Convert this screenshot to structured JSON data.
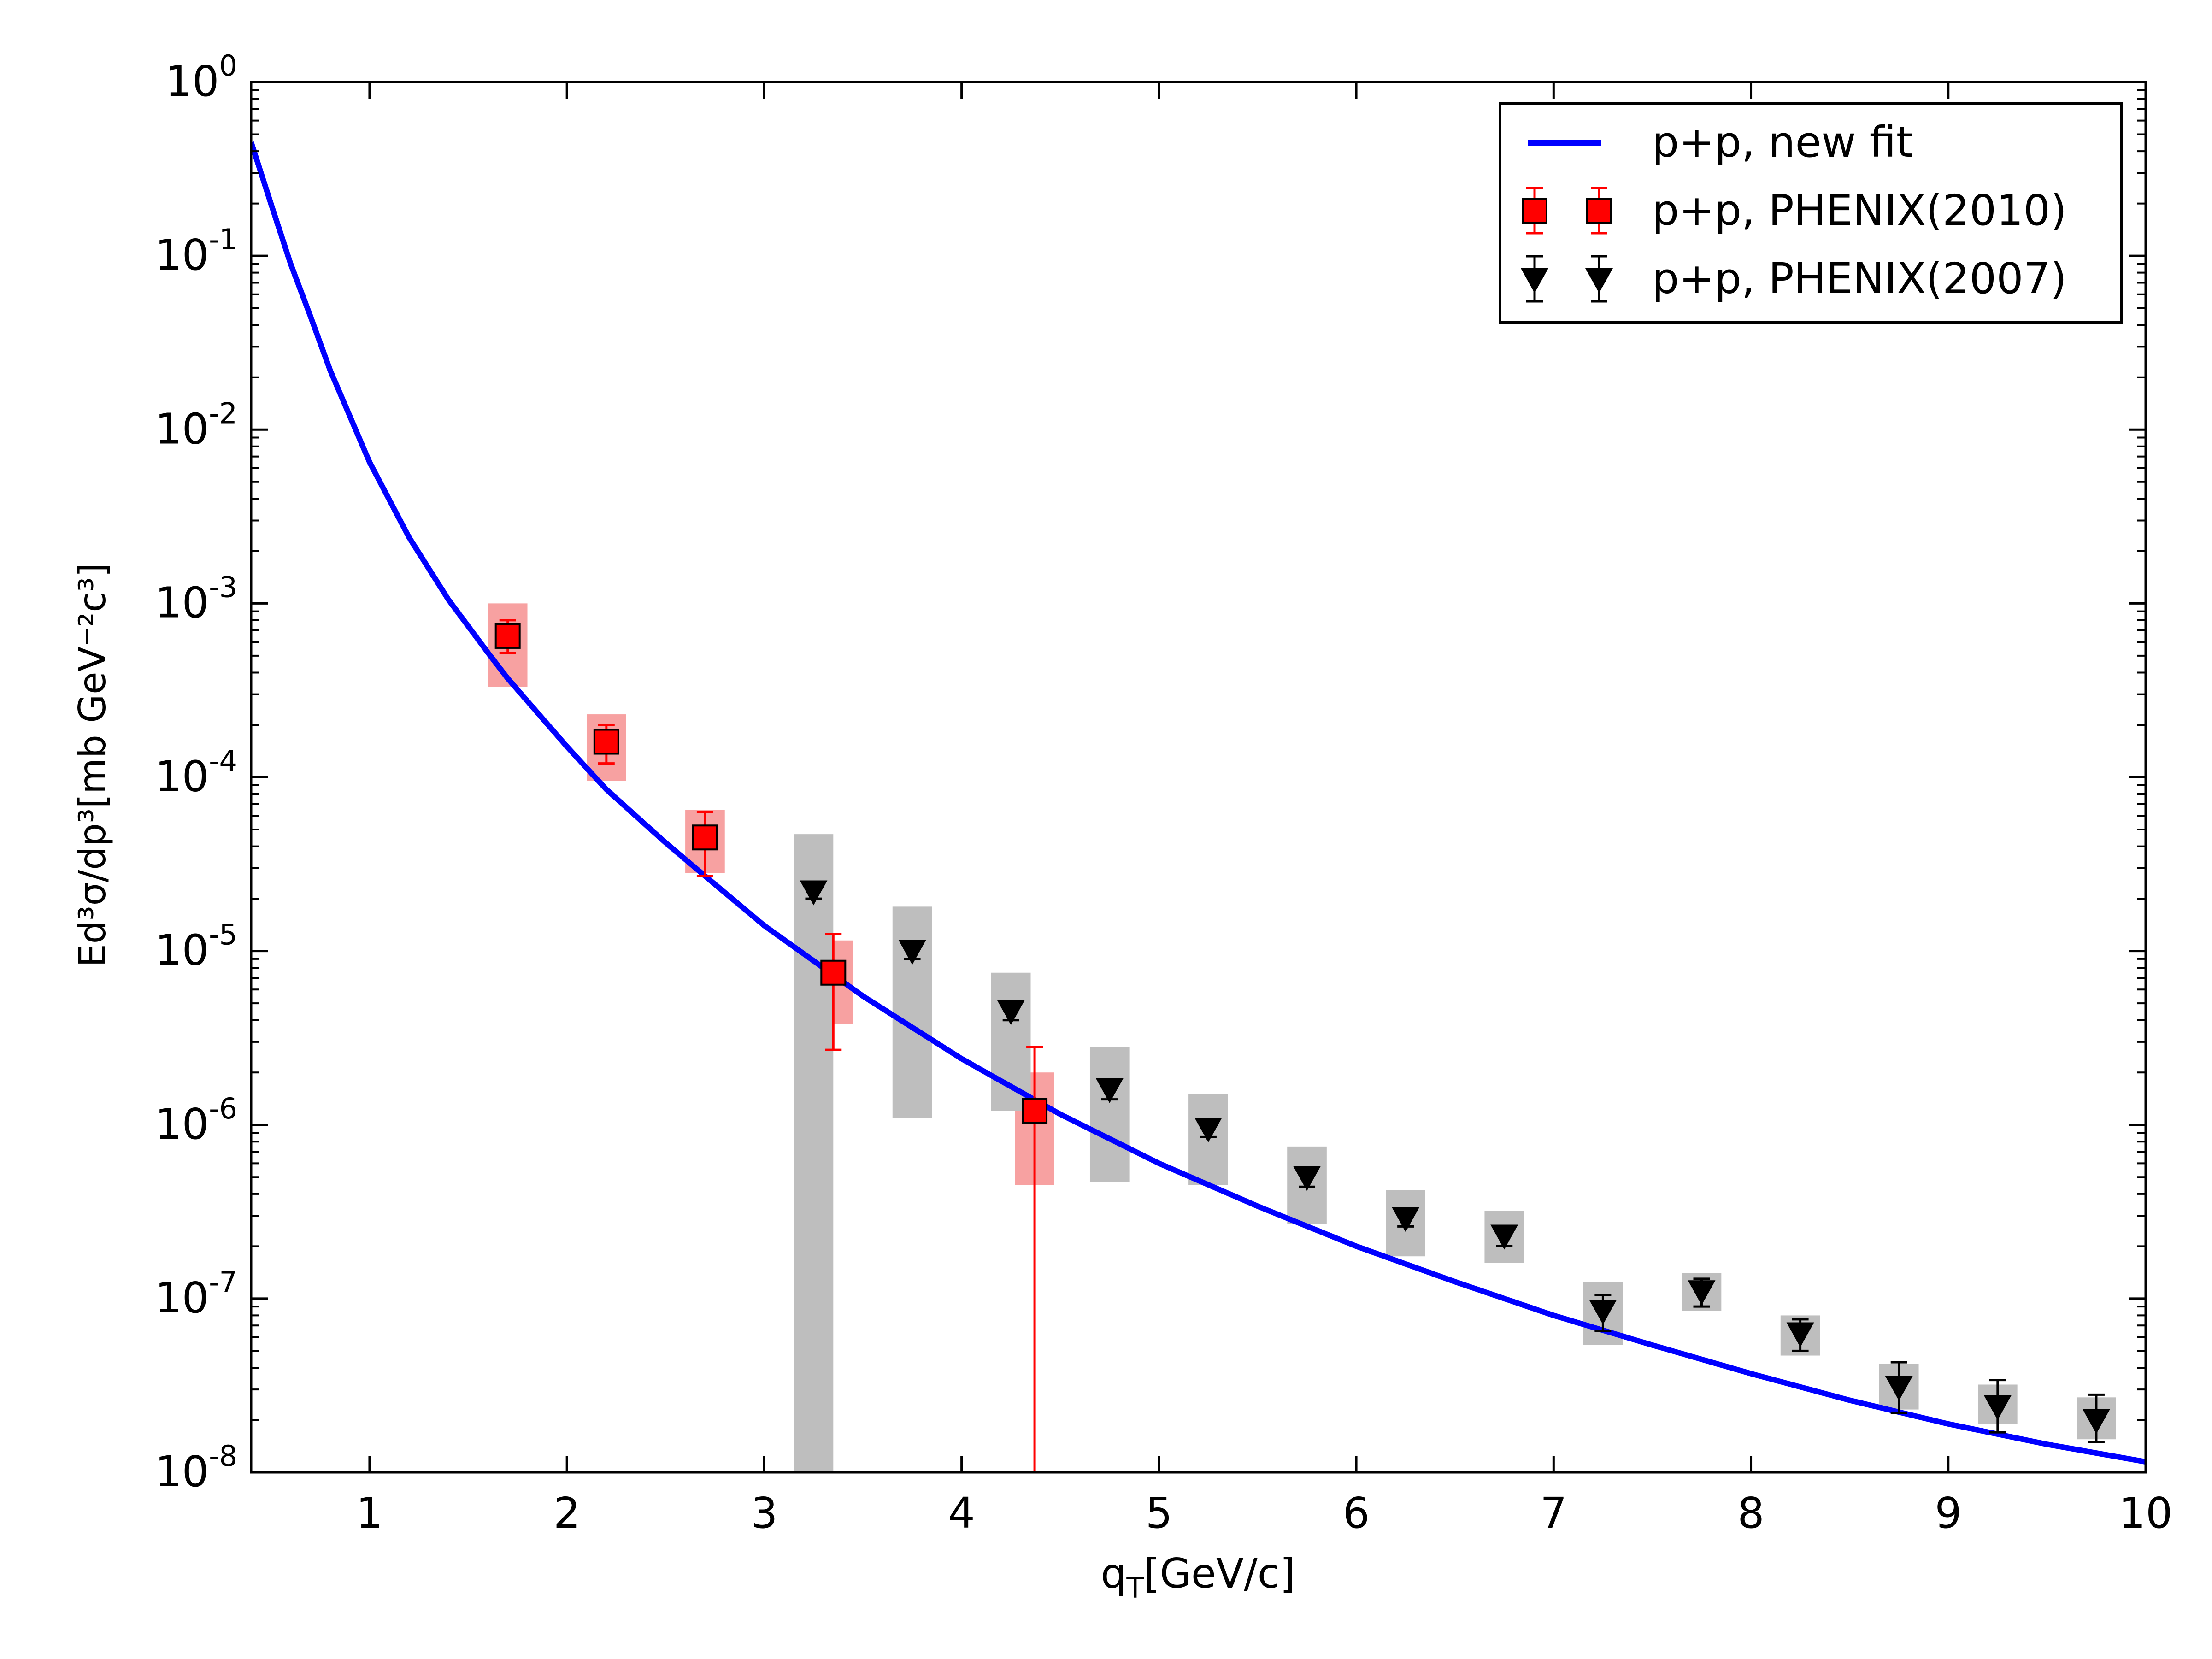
{
  "chart_data": {
    "type": "scatter",
    "title": "",
    "xlabel": "q",
    "xlabel_sub": "T",
    "xlabel_rest": "[GeV/c]",
    "ylabel": "Ed³σ/dp³[mb GeV⁻²c³]",
    "xlim": [
      0.4,
      10
    ],
    "ylim_log10": [
      -8,
      0
    ],
    "x_ticks": [
      1,
      2,
      3,
      4,
      5,
      6,
      7,
      8,
      9,
      10
    ],
    "x_tick_labels": [
      "1",
      "2",
      "3",
      "4",
      "5",
      "6",
      "7",
      "8",
      "9",
      "10"
    ],
    "y_ticks": [
      {
        "base": "10",
        "exp": "0",
        "log": 0
      },
      {
        "base": "10",
        "exp": "-1",
        "log": -1
      },
      {
        "base": "10",
        "exp": "-2",
        "log": -2
      },
      {
        "base": "10",
        "exp": "-3",
        "log": -3
      },
      {
        "base": "10",
        "exp": "-4",
        "log": -4
      },
      {
        "base": "10",
        "exp": "-5",
        "log": -5
      },
      {
        "base": "10",
        "exp": "-6",
        "log": -6
      },
      {
        "base": "10",
        "exp": "-7",
        "log": -7
      },
      {
        "base": "10",
        "exp": "-8",
        "log": -8
      }
    ],
    "legend": {
      "position": "top-right",
      "entries": [
        "p+p, new fit",
        "p+p, PHENIX(2010)",
        "p+p, PHENIX(2007)"
      ]
    },
    "series": [
      {
        "name": "p+p, new fit",
        "kind": "line",
        "color": "#0000ff",
        "x": [
          0.4,
          0.5,
          0.6,
          0.7,
          0.8,
          1.0,
          1.2,
          1.4,
          1.6,
          1.7,
          2.0,
          2.2,
          2.5,
          2.7,
          3.0,
          3.5,
          4.0,
          4.5,
          5.0,
          5.5,
          6.0,
          6.5,
          7.0,
          7.5,
          8.0,
          8.5,
          9.0,
          9.5,
          10.0
        ],
        "y": [
          0.45,
          0.2,
          0.09,
          0.045,
          0.022,
          0.0065,
          0.0024,
          0.00105,
          0.00052,
          0.00037,
          0.00015,
          8.5e-05,
          4.2e-05,
          2.7e-05,
          1.4e-05,
          5.5e-06,
          2.4e-06,
          1.15e-06,
          6e-07,
          3.4e-07,
          2e-07,
          1.25e-07,
          8e-08,
          5.4e-08,
          3.7e-08,
          2.6e-08,
          1.9e-08,
          1.45e-08,
          1.15e-08
        ]
      },
      {
        "name": "p+p, PHENIX(2010)",
        "kind": "points",
        "marker": "square",
        "color": "#ff0000",
        "sys_color": "#f7a1a1",
        "x": [
          1.7,
          2.2,
          2.7,
          3.35,
          4.37
        ],
        "y": [
          0.00065,
          0.00016,
          4.5e-05,
          7.5e-06,
          1.2e-06
        ],
        "err_low": [
          0.00052,
          0.00012,
          2.7e-05,
          2.7e-06,
          1e-08
        ],
        "err_high": [
          0.0008,
          0.0002,
          6.3e-05,
          1.25e-05,
          2.8e-06
        ],
        "sys_low": [
          0.00033,
          9.5e-05,
          2.8e-05,
          3.8e-06,
          4.5e-07
        ],
        "sys_high": [
          0.001,
          0.00023,
          6.5e-05,
          1.15e-05,
          2e-06
        ],
        "sys_halfwidth": 0.1
      },
      {
        "name": "p+p, PHENIX(2007)",
        "kind": "points",
        "marker": "triangle-down",
        "color": "#000000",
        "sys_color": "#bebebe",
        "x": [
          3.25,
          3.75,
          4.25,
          4.75,
          5.25,
          5.75,
          6.25,
          6.75,
          7.25,
          7.75,
          8.25,
          8.75,
          9.25,
          9.75
        ],
        "y": [
          2.2e-05,
          1e-05,
          4.5e-06,
          1.6e-06,
          9.5e-07,
          5e-07,
          2.9e-07,
          2.3e-07,
          8.5e-08,
          1.1e-07,
          6.3e-08,
          3.1e-08,
          2.4e-08,
          2e-08
        ],
        "err_low": [
          2e-05,
          9e-06,
          4e-06,
          1.4e-06,
          8.5e-07,
          4.4e-07,
          2.6e-07,
          2e-07,
          6.5e-08,
          9e-08,
          5e-08,
          2.2e-08,
          1.7e-08,
          1.5e-08
        ],
        "err_high": [
          2.4e-05,
          1.1e-05,
          5e-06,
          1.8e-06,
          1.05e-06,
          5.6e-07,
          3.2e-07,
          2.6e-07,
          1.05e-07,
          1.3e-07,
          7.6e-08,
          4.3e-08,
          3.4e-08,
          2.8e-08
        ],
        "sys_low": [
          1e-08,
          1.1e-06,
          1.2e-06,
          4.7e-07,
          4.5e-07,
          2.7e-07,
          1.75e-07,
          1.6e-07,
          5.4e-08,
          8.5e-08,
          4.7e-08,
          2.3e-08,
          1.9e-08,
          1.55e-08
        ],
        "sys_high": [
          4.7e-05,
          1.8e-05,
          7.5e-06,
          2.8e-06,
          1.5e-06,
          7.5e-07,
          4.2e-07,
          3.2e-07,
          1.25e-07,
          1.4e-07,
          8e-08,
          4.2e-08,
          3.2e-08,
          2.7e-08
        ],
        "sys_halfwidth": 0.1
      }
    ]
  }
}
